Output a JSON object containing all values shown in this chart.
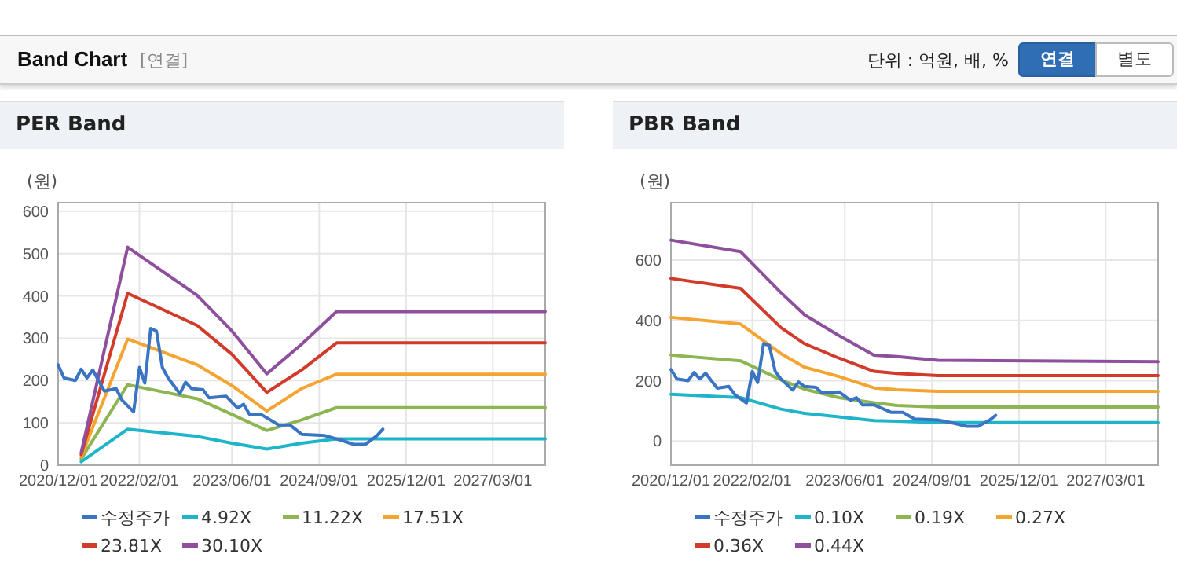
{
  "chart_data": [
    {
      "type": "other",
      "title": "Band Chart",
      "annotations": [
        "[연결]",
        "단위 : 억원, 배, %",
        "연결",
        "별도"
      ]
    },
    {
      "type": "line",
      "title": "PER Band",
      "ylabel": "(원)",
      "grid": true,
      "legend": "bottom",
      "xlim": [
        "2020-12-01",
        "2027-12-01"
      ],
      "ylim": [
        0,
        620
      ],
      "yticks": [
        0,
        100,
        200,
        300,
        400,
        500,
        600
      ],
      "xticks": [
        {
          "value": "2020-12-01",
          "label": "2020/12/01"
        },
        {
          "value": "2022-02-01",
          "label": "2022/02/01"
        },
        {
          "value": "2023-06-01",
          "label": "2023/06/01"
        },
        {
          "value": "2024-09-01",
          "label": "2024/09/01"
        },
        {
          "value": "2025-12-01",
          "label": "2025/12/01"
        },
        {
          "value": "2027-03-01",
          "label": "2027/03/01"
        }
      ],
      "series": [
        {
          "name": "수정주가",
          "color": "#3a75c4",
          "x": [
            "2020-12",
            "2021-01",
            "2021-03",
            "2021-04",
            "2021-05",
            "2021-06",
            "2021-07",
            "2021-08",
            "2021-10",
            "2021-11",
            "2022-01",
            "2022-02",
            "2022-03",
            "2022-04",
            "2022-05",
            "2022-06",
            "2022-07",
            "2022-09",
            "2022-10",
            "2022-11",
            "2023-01",
            "2023-02",
            "2023-05",
            "2023-07",
            "2023-08",
            "2023-09",
            "2023-11",
            "2024-02",
            "2024-04",
            "2024-06",
            "2024-10",
            "2025-01",
            "2025-03",
            "2025-05",
            "2025-07",
            "2025-08"
          ],
          "values": [
            237,
            206,
            200,
            227,
            206,
            225,
            200,
            175,
            181,
            154,
            126,
            231,
            194,
            323,
            317,
            231,
            206,
            169,
            196,
            181,
            178,
            159,
            163,
            135,
            144,
            120,
            120,
            95,
            95,
            73,
            70,
            58,
            49,
            49,
            70,
            85
          ]
        },
        {
          "name": "4.92X",
          "color": "#1fb5c9",
          "x": [
            "2021-04",
            "2021-12",
            "2022-12",
            "2023-06",
            "2023-12",
            "2024-06",
            "2024-12",
            "2027-12"
          ],
          "values": [
            8,
            85,
            68,
            52,
            38,
            52,
            62,
            62
          ]
        },
        {
          "name": "11.22X",
          "color": "#8db551",
          "x": [
            "2021-04",
            "2021-12",
            "2022-12",
            "2023-06",
            "2023-12",
            "2024-06",
            "2024-12",
            "2027-12"
          ],
          "values": [
            15,
            190,
            157,
            120,
            82,
            107,
            136,
            136
          ]
        },
        {
          "name": "17.51X",
          "color": "#f5a431",
          "x": [
            "2021-04",
            "2021-12",
            "2022-12",
            "2023-06",
            "2023-12",
            "2024-06",
            "2024-12",
            "2027-12"
          ],
          "values": [
            20,
            298,
            237,
            188,
            128,
            181,
            215,
            215
          ]
        },
        {
          "name": "23.81X",
          "color": "#d23a2a",
          "x": [
            "2021-04",
            "2021-12",
            "2022-12",
            "2023-06",
            "2023-12",
            "2024-06",
            "2024-12",
            "2027-12"
          ],
          "values": [
            25,
            406,
            330,
            262,
            172,
            225,
            289,
            289
          ]
        },
        {
          "name": "30.10X",
          "color": "#8e4f9c",
          "x": [
            "2021-04",
            "2021-12",
            "2022-12",
            "2023-06",
            "2023-12",
            "2024-06",
            "2024-12",
            "2027-12"
          ],
          "values": [
            30,
            515,
            401,
            317,
            216,
            286,
            363,
            363
          ]
        }
      ]
    },
    {
      "type": "line",
      "title": "PBR Band",
      "ylabel": "(원)",
      "grid": true,
      "legend": "bottom",
      "xlim": [
        "2020-12-01",
        "2027-12-01"
      ],
      "ylim": [
        -80,
        790
      ],
      "yticks": [
        0,
        200,
        400,
        600
      ],
      "xticks": [
        {
          "value": "2020-12-01",
          "label": "2020/12/01"
        },
        {
          "value": "2022-02-01",
          "label": "2022/02/01"
        },
        {
          "value": "2023-06-01",
          "label": "2023/06/01"
        },
        {
          "value": "2024-09-01",
          "label": "2024/09/01"
        },
        {
          "value": "2025-12-01",
          "label": "2025/12/01"
        },
        {
          "value": "2027-03-01",
          "label": "2027/03/01"
        }
      ],
      "series": [
        {
          "name": "수정주가",
          "color": "#3a75c4",
          "x": [
            "2020-12",
            "2021-01",
            "2021-03",
            "2021-04",
            "2021-05",
            "2021-06",
            "2021-07",
            "2021-08",
            "2021-10",
            "2021-11",
            "2022-01",
            "2022-02",
            "2022-03",
            "2022-04",
            "2022-05",
            "2022-06",
            "2022-07",
            "2022-09",
            "2022-10",
            "2022-11",
            "2023-01",
            "2023-02",
            "2023-05",
            "2023-07",
            "2023-08",
            "2023-09",
            "2023-11",
            "2024-02",
            "2024-04",
            "2024-06",
            "2024-10",
            "2025-01",
            "2025-03",
            "2025-05",
            "2025-07",
            "2025-08"
          ],
          "values": [
            237,
            206,
            200,
            227,
            206,
            225,
            200,
            175,
            181,
            154,
            126,
            231,
            194,
            323,
            317,
            231,
            206,
            169,
            196,
            181,
            178,
            159,
            163,
            135,
            144,
            120,
            120,
            95,
            95,
            73,
            70,
            58,
            49,
            49,
            70,
            85
          ]
        },
        {
          "name": "0.10X",
          "color": "#1fb5c9",
          "x": [
            "2020-12",
            "2021-12",
            "2022-07",
            "2022-11",
            "2023-05",
            "2023-11",
            "2024-03",
            "2024-10",
            "2027-12"
          ],
          "values": [
            155,
            144,
            106,
            92,
            80,
            68,
            66,
            61,
            61
          ]
        },
        {
          "name": "0.19X",
          "color": "#8db551",
          "x": [
            "2020-12",
            "2021-12",
            "2022-07",
            "2022-11",
            "2023-05",
            "2023-11",
            "2024-03",
            "2024-10",
            "2027-12"
          ],
          "values": [
            285,
            266,
            203,
            172,
            144,
            127,
            118,
            113,
            113
          ]
        },
        {
          "name": "0.27X",
          "color": "#f5a431",
          "x": [
            "2020-12",
            "2021-12",
            "2022-07",
            "2022-11",
            "2023-05",
            "2023-11",
            "2024-03",
            "2024-10",
            "2027-12"
          ],
          "values": [
            410,
            388,
            290,
            245,
            214,
            176,
            170,
            165,
            165
          ]
        },
        {
          "name": "0.36X",
          "color": "#d23a2a",
          "x": [
            "2020-12",
            "2021-12",
            "2022-07",
            "2022-11",
            "2023-05",
            "2023-11",
            "2024-03",
            "2024-10",
            "2027-12"
          ],
          "values": [
            539,
            506,
            376,
            323,
            275,
            231,
            224,
            217,
            217
          ]
        },
        {
          "name": "0.44X",
          "color": "#8e4f9c",
          "x": [
            "2020-12",
            "2021-12",
            "2022-07",
            "2022-11",
            "2023-05",
            "2023-11",
            "2024-03",
            "2024-10",
            "2027-12"
          ],
          "values": [
            666,
            628,
            492,
            419,
            350,
            285,
            280,
            268,
            263
          ]
        }
      ]
    }
  ]
}
